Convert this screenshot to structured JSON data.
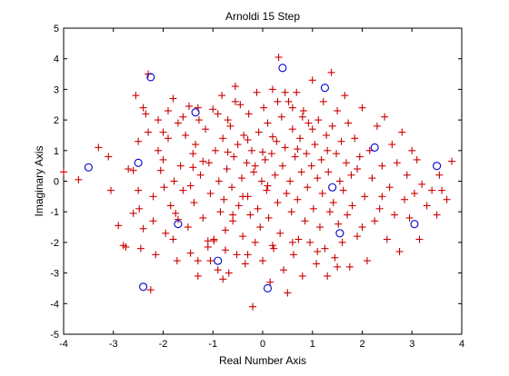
{
  "chart_data": {
    "type": "scatter",
    "title": "Arnoldi 15 Step",
    "xlabel": "Real Number Axis",
    "ylabel": "Imaginary Axis",
    "xlim": [
      -4,
      4
    ],
    "ylim": [
      -5,
      5
    ],
    "xticks": [
      -4,
      -3,
      -2,
      -1,
      0,
      1,
      2,
      3,
      4
    ],
    "yticks": [
      -5,
      -4,
      -3,
      -2,
      -1,
      0,
      1,
      2,
      3,
      4,
      5
    ],
    "grid": false,
    "series": [
      {
        "marker": "plus",
        "color": "#cc0000",
        "points": [
          [
            -4.0,
            0.3
          ],
          [
            -3.7,
            0.05
          ],
          [
            -3.3,
            1.1
          ],
          [
            -3.1,
            0.8
          ],
          [
            -3.05,
            -0.3
          ],
          [
            -2.9,
            -1.45
          ],
          [
            -2.8,
            -2.1
          ],
          [
            -2.75,
            -2.15
          ],
          [
            -2.7,
            0.4
          ],
          [
            -2.6,
            -1.05
          ],
          [
            -2.55,
            2.8
          ],
          [
            -2.5,
            1.3
          ],
          [
            -2.48,
            -0.9
          ],
          [
            -2.45,
            -2.2
          ],
          [
            -2.4,
            -1.55
          ],
          [
            -2.35,
            2.2
          ],
          [
            -2.3,
            3.5
          ],
          [
            -2.25,
            -3.55
          ],
          [
            -2.2,
            -0.5
          ],
          [
            -2.15,
            -2.4
          ],
          [
            -2.1,
            1.0
          ],
          [
            -2.05,
            0.35
          ],
          [
            -2.0,
            0.7
          ],
          [
            -1.98,
            -0.2
          ],
          [
            -1.95,
            -1.7
          ],
          [
            -1.9,
            1.4
          ],
          [
            -1.85,
            -0.8
          ],
          [
            -1.8,
            2.7
          ],
          [
            -1.78,
            0.0
          ],
          [
            -1.75,
            -1.05
          ],
          [
            -1.72,
            -2.6
          ],
          [
            -1.7,
            1.9
          ],
          [
            -1.65,
            0.5
          ],
          [
            -1.6,
            -0.3
          ],
          [
            -1.55,
            1.5
          ],
          [
            -1.5,
            -1.5
          ],
          [
            -1.48,
            2.45
          ],
          [
            -1.45,
            -2.35
          ],
          [
            -1.4,
            0.9
          ],
          [
            -1.38,
            -0.7
          ],
          [
            -1.35,
            1.2
          ],
          [
            -1.3,
            -3.1
          ],
          [
            -1.28,
            2.0
          ],
          [
            -1.25,
            0.2
          ],
          [
            -1.2,
            -1.2
          ],
          [
            -1.15,
            1.7
          ],
          [
            -1.1,
            -2.15
          ],
          [
            -1.08,
            0.6
          ],
          [
            -1.05,
            -0.4
          ],
          [
            -1.0,
            2.35
          ],
          [
            -0.98,
            -1.95
          ],
          [
            -0.95,
            1.0
          ],
          [
            -0.9,
            -2.9
          ],
          [
            -0.88,
            0.0
          ],
          [
            -0.85,
            -1.0
          ],
          [
            -0.82,
            2.8
          ],
          [
            -0.8,
            1.4
          ],
          [
            -0.78,
            -0.6
          ],
          [
            -0.75,
            -1.6
          ],
          [
            -0.72,
            0.4
          ],
          [
            -0.7,
            2.0
          ],
          [
            -0.68,
            -3.0
          ],
          [
            -0.65,
            1.8
          ],
          [
            -0.62,
            -0.2
          ],
          [
            -0.6,
            -1.3
          ],
          [
            -0.58,
            0.8
          ],
          [
            -0.55,
            3.1
          ],
          [
            -0.52,
            -2.4
          ],
          [
            -0.5,
            1.2
          ],
          [
            -0.48,
            -0.8
          ],
          [
            -0.45,
            2.5
          ],
          [
            -0.42,
            0.1
          ],
          [
            -0.4,
            -1.8
          ],
          [
            -0.38,
            1.5
          ],
          [
            -0.35,
            -2.7
          ],
          [
            -0.32,
            0.6
          ],
          [
            -0.3,
            -0.5
          ],
          [
            -0.28,
            2.2
          ],
          [
            -0.25,
            -1.1
          ],
          [
            -0.22,
            1.0
          ],
          [
            -0.2,
            -4.1
          ],
          [
            -0.18,
            0.3
          ],
          [
            -0.15,
            -2.0
          ],
          [
            -0.12,
            2.9
          ],
          [
            -0.1,
            -0.9
          ],
          [
            -0.08,
            1.6
          ],
          [
            -0.05,
            -1.5
          ],
          [
            -0.02,
            0.0
          ],
          [
            0.0,
            -2.6
          ],
          [
            0.02,
            2.4
          ],
          [
            0.05,
            0.7
          ],
          [
            0.08,
            -0.3
          ],
          [
            0.1,
            1.9
          ],
          [
            0.12,
            -1.2
          ],
          [
            0.15,
            -3.3
          ],
          [
            0.18,
            0.9
          ],
          [
            0.2,
            3.0
          ],
          [
            0.22,
            -2.2
          ],
          [
            0.25,
            0.2
          ],
          [
            0.28,
            1.3
          ],
          [
            0.3,
            -0.7
          ],
          [
            0.32,
            4.05
          ],
          [
            0.35,
            -1.7
          ],
          [
            0.38,
            2.1
          ],
          [
            0.4,
            0.5
          ],
          [
            0.42,
            -2.9
          ],
          [
            0.45,
            1.1
          ],
          [
            0.48,
            -0.4
          ],
          [
            0.5,
            -3.65
          ],
          [
            0.52,
            2.6
          ],
          [
            0.55,
            0.0
          ],
          [
            0.58,
            -1.0
          ],
          [
            0.6,
            1.7
          ],
          [
            0.62,
            -2.4
          ],
          [
            0.65,
            0.8
          ],
          [
            0.68,
            2.9
          ],
          [
            0.7,
            -0.6
          ],
          [
            0.72,
            -1.9
          ],
          [
            0.75,
            1.4
          ],
          [
            0.78,
            0.3
          ],
          [
            0.8,
            -3.1
          ],
          [
            0.82,
            2.3
          ],
          [
            0.85,
            -1.3
          ],
          [
            0.88,
            0.9
          ],
          [
            0.9,
            -0.2
          ],
          [
            0.92,
            1.9
          ],
          [
            0.95,
            -2.0
          ],
          [
            0.98,
            0.5
          ],
          [
            1.0,
            3.3
          ],
          [
            1.02,
            -0.9
          ],
          [
            1.05,
            1.2
          ],
          [
            1.08,
            -2.7
          ],
          [
            1.1,
            0.1
          ],
          [
            1.12,
            2.0
          ],
          [
            1.15,
            -1.5
          ],
          [
            1.18,
            0.7
          ],
          [
            1.2,
            -0.4
          ],
          [
            1.22,
            2.6
          ],
          [
            1.25,
            -2.2
          ],
          [
            1.28,
            1.5
          ],
          [
            1.3,
            -3.1
          ],
          [
            1.32,
            0.3
          ],
          [
            1.35,
            -1.0
          ],
          [
            1.38,
            3.55
          ],
          [
            1.4,
            1.8
          ],
          [
            1.42,
            -0.7
          ],
          [
            1.45,
            -2.5
          ],
          [
            1.48,
            0.9
          ],
          [
            1.5,
            2.3
          ],
          [
            1.52,
            -1.4
          ],
          [
            1.55,
            0.0
          ],
          [
            1.58,
            1.3
          ],
          [
            1.6,
            -2.0
          ],
          [
            1.62,
            -0.3
          ],
          [
            1.65,
            2.8
          ],
          [
            1.68,
            0.6
          ],
          [
            1.7,
            -1.1
          ],
          [
            1.72,
            1.9
          ],
          [
            1.75,
            -2.8
          ],
          [
            1.78,
            0.2
          ],
          [
            1.8,
            -0.8
          ],
          [
            1.85,
            1.4
          ],
          [
            1.9,
            -1.8
          ],
          [
            1.95,
            0.8
          ],
          [
            2.0,
            2.4
          ],
          [
            2.05,
            -0.5
          ],
          [
            2.1,
            -2.6
          ],
          [
            2.15,
            1.0
          ],
          [
            2.2,
            0.1
          ],
          [
            2.25,
            -1.3
          ],
          [
            2.3,
            1.8
          ],
          [
            2.35,
            -0.9
          ],
          [
            2.4,
            0.5
          ],
          [
            2.45,
            2.1
          ],
          [
            2.5,
            -1.9
          ],
          [
            2.55,
            -0.2
          ],
          [
            2.6,
            1.2
          ],
          [
            2.65,
            -1.1
          ],
          [
            2.7,
            0.6
          ],
          [
            2.75,
            -2.3
          ],
          [
            2.8,
            1.6
          ],
          [
            2.85,
            -0.6
          ],
          [
            2.9,
            0.2
          ],
          [
            2.95,
            -1.2
          ],
          [
            3.0,
            1.0
          ],
          [
            3.05,
            -0.4
          ],
          [
            3.1,
            0.7
          ],
          [
            3.15,
            -1.9
          ],
          [
            3.2,
            -0.1
          ],
          [
            3.3,
            -0.8
          ],
          [
            3.4,
            -0.3
          ],
          [
            3.5,
            -1.1
          ],
          [
            3.55,
            0.2
          ],
          [
            3.6,
            -0.3
          ],
          [
            3.7,
            -0.6
          ],
          [
            3.8,
            0.65
          ],
          [
            -1.7,
            -1.25
          ],
          [
            -1.45,
            -0.15
          ],
          [
            -1.1,
            -1.95
          ],
          [
            -0.98,
            -1.9
          ],
          [
            -1.05,
            -2.6
          ],
          [
            -0.75,
            -2.25
          ],
          [
            -0.6,
            -1.1
          ],
          [
            -0.4,
            -0.5
          ],
          [
            -0.15,
            0.5
          ],
          [
            0.1,
            -0.15
          ],
          [
            0.3,
            2.6
          ],
          [
            0.45,
            2.9
          ],
          [
            0.6,
            2.4
          ],
          [
            0.8,
            2.1
          ],
          [
            1.0,
            1.7
          ],
          [
            0.2,
            1.45
          ],
          [
            -0.3,
            1.35
          ],
          [
            -0.55,
            2.6
          ],
          [
            -0.9,
            2.2
          ],
          [
            -1.3,
            2.4
          ],
          [
            -1.6,
            2.1
          ],
          [
            -1.9,
            2.3
          ],
          [
            -2.1,
            2.0
          ],
          [
            -1.4,
            0.45
          ],
          [
            -1.2,
            0.65
          ],
          [
            -0.7,
            0.95
          ],
          [
            0.0,
            0.95
          ],
          [
            0.7,
            1.05
          ],
          [
            1.3,
            1.0
          ],
          [
            1.9,
            0.4
          ],
          [
            2.4,
            -0.5
          ],
          [
            2.0,
            -1.5
          ],
          [
            1.5,
            -2.8
          ],
          [
            1.1,
            -2.3
          ],
          [
            0.6,
            -2.0
          ],
          [
            0.2,
            -2.1
          ],
          [
            -0.3,
            -2.4
          ],
          [
            -0.8,
            -3.2
          ],
          [
            -1.3,
            -2.6
          ],
          [
            -1.8,
            -1.9
          ],
          [
            -2.2,
            -1.3
          ],
          [
            -2.5,
            -0.3
          ],
          [
            -2.6,
            0.35
          ],
          [
            -2.3,
            1.6
          ],
          [
            -2.0,
            1.6
          ],
          [
            -2.4,
            2.4
          ]
        ]
      },
      {
        "marker": "circle",
        "color": "#0000cc",
        "points": [
          [
            -3.5,
            0.45
          ],
          [
            -2.5,
            0.6
          ],
          [
            -2.25,
            3.4
          ],
          [
            -2.4,
            -3.45
          ],
          [
            -1.7,
            -1.4
          ],
          [
            -1.35,
            2.25
          ],
          [
            -0.9,
            -2.6
          ],
          [
            0.1,
            -3.5
          ],
          [
            0.4,
            3.7
          ],
          [
            1.25,
            3.05
          ],
          [
            1.4,
            -0.2
          ],
          [
            1.55,
            -1.7
          ],
          [
            2.25,
            1.1
          ],
          [
            3.05,
            -1.4
          ],
          [
            3.5,
            0.5
          ]
        ]
      }
    ]
  }
}
